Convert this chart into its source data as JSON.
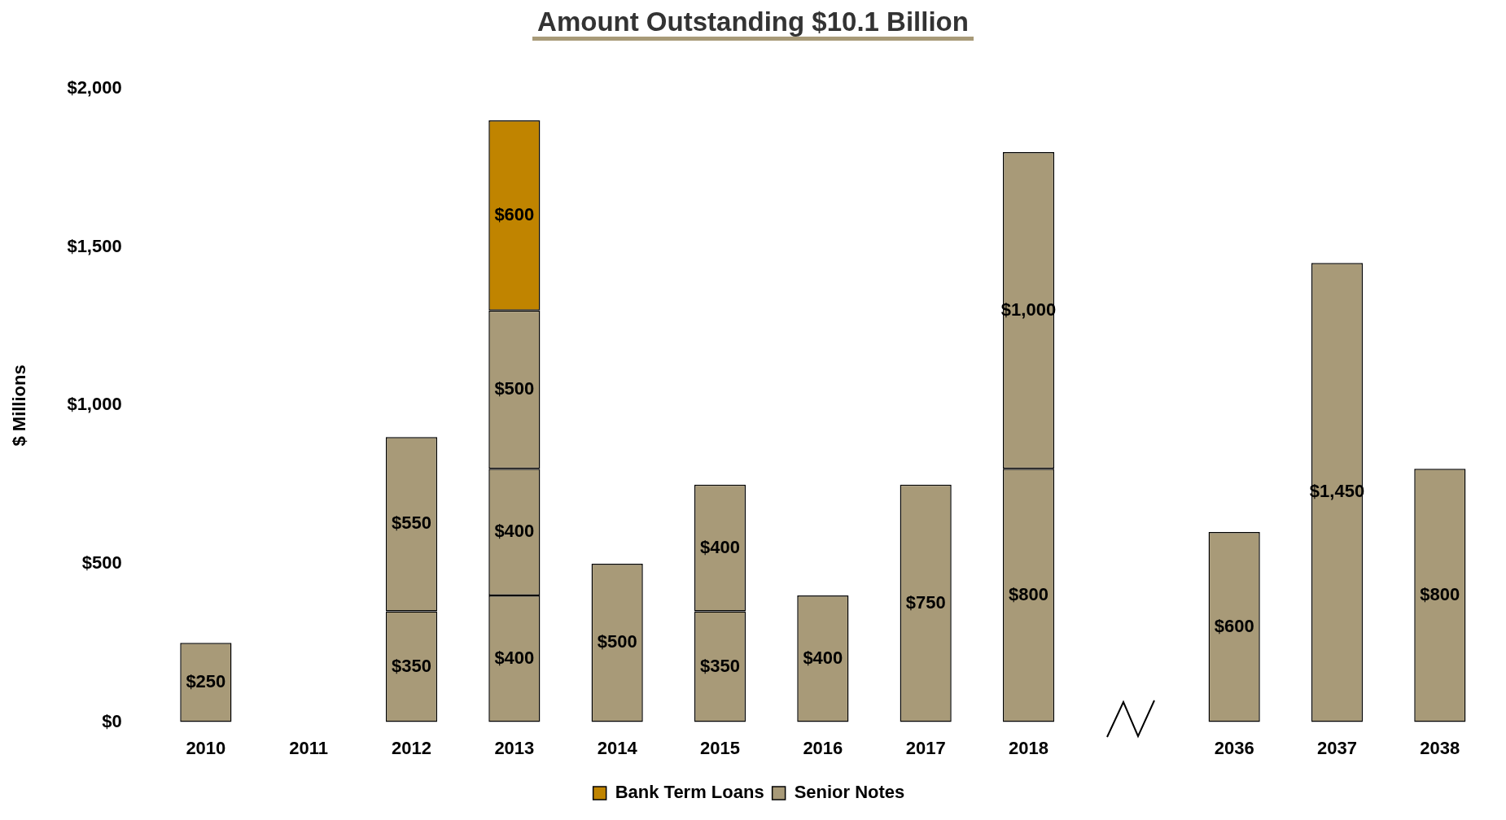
{
  "chart_data": {
    "type": "bar",
    "title": "Amount Outstanding  $10.1 Billion",
    "ylabel": "$ Millions",
    "stacked": true,
    "categories": [
      "2010",
      "2011",
      "2012",
      "2013",
      "2014",
      "2015",
      "2016",
      "2017",
      "2018",
      null,
      "2036",
      "2037",
      "2038"
    ],
    "series": [
      {
        "name": "Senior Notes",
        "color": "#a89a78",
        "values": [
          250,
          null,
          350,
          400,
          500,
          350,
          400,
          750,
          800,
          null,
          600,
          1450,
          800
        ],
        "value_labels": [
          "$250",
          null,
          "$350",
          "$400",
          "$500",
          "$350",
          "$400",
          "$750",
          "$800",
          null,
          "$600",
          "$1,450",
          "$800"
        ]
      },
      {
        "color": "#a89a78",
        "values": [
          null,
          null,
          550,
          400,
          null,
          400,
          null,
          null,
          1000,
          null,
          null,
          null,
          null
        ],
        "value_labels": [
          null,
          null,
          "$550",
          "$400",
          null,
          "$400",
          null,
          null,
          "$1,000",
          null,
          null,
          null,
          null
        ]
      },
      {
        "color": "#a89a78",
        "values": [
          null,
          null,
          null,
          500,
          null,
          null,
          null,
          null,
          null,
          null,
          null,
          null,
          null
        ],
        "value_labels": [
          null,
          null,
          null,
          "$500",
          null,
          null,
          null,
          null,
          null,
          null,
          null,
          null,
          null
        ]
      },
      {
        "name": "Bank Term Loans",
        "color": "#c08400",
        "values": [
          null,
          null,
          null,
          600,
          null,
          null,
          null,
          null,
          null,
          null,
          null,
          null,
          null
        ],
        "value_labels": [
          null,
          null,
          null,
          "$600",
          null,
          null,
          null,
          null,
          null,
          null,
          null,
          null,
          null
        ]
      }
    ],
    "ylim": [
      0,
      2000
    ],
    "yticks": [
      {
        "value": 0,
        "label": "$0"
      },
      {
        "value": 500,
        "label": "$500"
      },
      {
        "value": 1000,
        "label": "$1,000"
      },
      {
        "value": 1500,
        "label": "$1,500"
      },
      {
        "value": 2000,
        "label": "$2,000"
      }
    ],
    "grid": false,
    "legend": "bottom"
  }
}
